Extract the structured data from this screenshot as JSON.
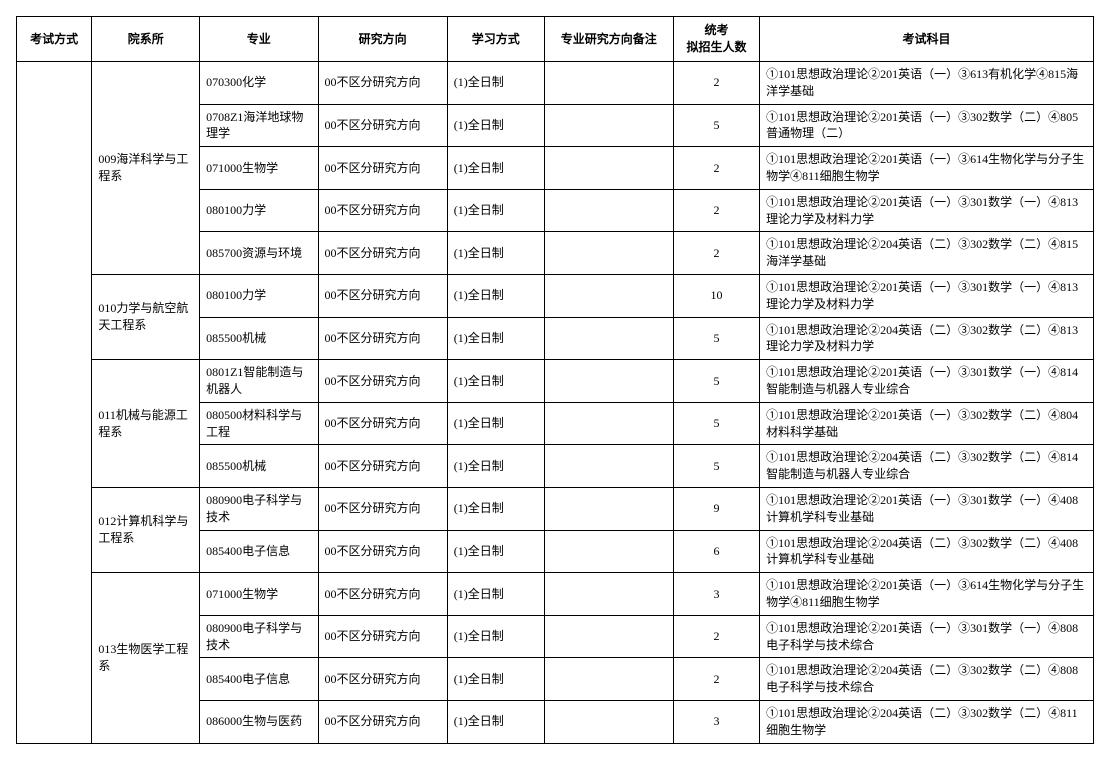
{
  "columns": [
    "考试方式",
    "院系所",
    "专业",
    "研究方向",
    "学习方式",
    "专业研究方向备注",
    "统考\n拟招生人数",
    "考试科目"
  ],
  "depts": [
    {
      "name": "009海洋科学与工程系",
      "rows": [
        {
          "major": "070300化学",
          "dir": "00不区分研究方向",
          "mode": "(1)全日制",
          "note": "",
          "count": "2",
          "subjects": "①101思想政治理论②201英语（一）③613有机化学④815海洋学基础"
        },
        {
          "major": "0708Z1海洋地球物理学",
          "dir": "00不区分研究方向",
          "mode": "(1)全日制",
          "note": "",
          "count": "5",
          "subjects": "①101思想政治理论②201英语（一）③302数学（二）④805普通物理（二）"
        },
        {
          "major": "071000生物学",
          "dir": "00不区分研究方向",
          "mode": "(1)全日制",
          "note": "",
          "count": "2",
          "subjects": "①101思想政治理论②201英语（一）③614生物化学与分子生物学④811细胞生物学"
        },
        {
          "major": "080100力学",
          "dir": "00不区分研究方向",
          "mode": "(1)全日制",
          "note": "",
          "count": "2",
          "subjects": "①101思想政治理论②201英语（一）③301数学（一）④813理论力学及材料力学"
        },
        {
          "major": "085700资源与环境",
          "dir": "00不区分研究方向",
          "mode": "(1)全日制",
          "note": "",
          "count": "2",
          "subjects": "①101思想政治理论②204英语（二）③302数学（二）④815海洋学基础"
        }
      ]
    },
    {
      "name": "010力学与航空航天工程系",
      "rows": [
        {
          "major": "080100力学",
          "dir": "00不区分研究方向",
          "mode": "(1)全日制",
          "note": "",
          "count": "10",
          "subjects": "①101思想政治理论②201英语（一）③301数学（一）④813理论力学及材料力学"
        },
        {
          "major": "085500机械",
          "dir": "00不区分研究方向",
          "mode": "(1)全日制",
          "note": "",
          "count": "5",
          "subjects": "①101思想政治理论②204英语（二）③302数学（二）④813理论力学及材料力学"
        }
      ]
    },
    {
      "name": "011机械与能源工程系",
      "rows": [
        {
          "major": "0801Z1智能制造与机器人",
          "dir": "00不区分研究方向",
          "mode": "(1)全日制",
          "note": "",
          "count": "5",
          "subjects": "①101思想政治理论②201英语（一）③301数学（一）④814智能制造与机器人专业综合"
        },
        {
          "major": "080500材料科学与工程",
          "dir": "00不区分研究方向",
          "mode": "(1)全日制",
          "note": "",
          "count": "5",
          "subjects": "①101思想政治理论②201英语（一）③302数学（二）④804材料科学基础"
        },
        {
          "major": "085500机械",
          "dir": "00不区分研究方向",
          "mode": "(1)全日制",
          "note": "",
          "count": "5",
          "subjects": "①101思想政治理论②204英语（二）③302数学（二）④814智能制造与机器人专业综合"
        }
      ]
    },
    {
      "name": "012计算机科学与工程系",
      "rows": [
        {
          "major": "080900电子科学与技术",
          "dir": "00不区分研究方向",
          "mode": "(1)全日制",
          "note": "",
          "count": "9",
          "subjects": "①101思想政治理论②201英语（一）③301数学（一）④408计算机学科专业基础"
        },
        {
          "major": "085400电子信息",
          "dir": "00不区分研究方向",
          "mode": "(1)全日制",
          "note": "",
          "count": "6",
          "subjects": "①101思想政治理论②204英语（二）③302数学（二）④408计算机学科专业基础"
        }
      ]
    },
    {
      "name": "013生物医学工程系",
      "rows": [
        {
          "major": "071000生物学",
          "dir": "00不区分研究方向",
          "mode": "(1)全日制",
          "note": "",
          "count": "3",
          "subjects": "①101思想政治理论②201英语（一）③614生物化学与分子生物学④811细胞生物学"
        },
        {
          "major": "080900电子科学与技术",
          "dir": "00不区分研究方向",
          "mode": "(1)全日制",
          "note": "",
          "count": "2",
          "subjects": "①101思想政治理论②201英语（一）③301数学（一）④808电子科学与技术综合"
        },
        {
          "major": "085400电子信息",
          "dir": "00不区分研究方向",
          "mode": "(1)全日制",
          "note": "",
          "count": "2",
          "subjects": "①101思想政治理论②204英语（二）③302数学（二）④808电子科学与技术综合"
        },
        {
          "major": "086000生物与医药",
          "dir": "00不区分研究方向",
          "mode": "(1)全日制",
          "note": "",
          "count": "3",
          "subjects": "①101思想政治理论②204英语（二）③302数学（二）④811细胞生物学"
        }
      ]
    }
  ],
  "totalRows": 16
}
